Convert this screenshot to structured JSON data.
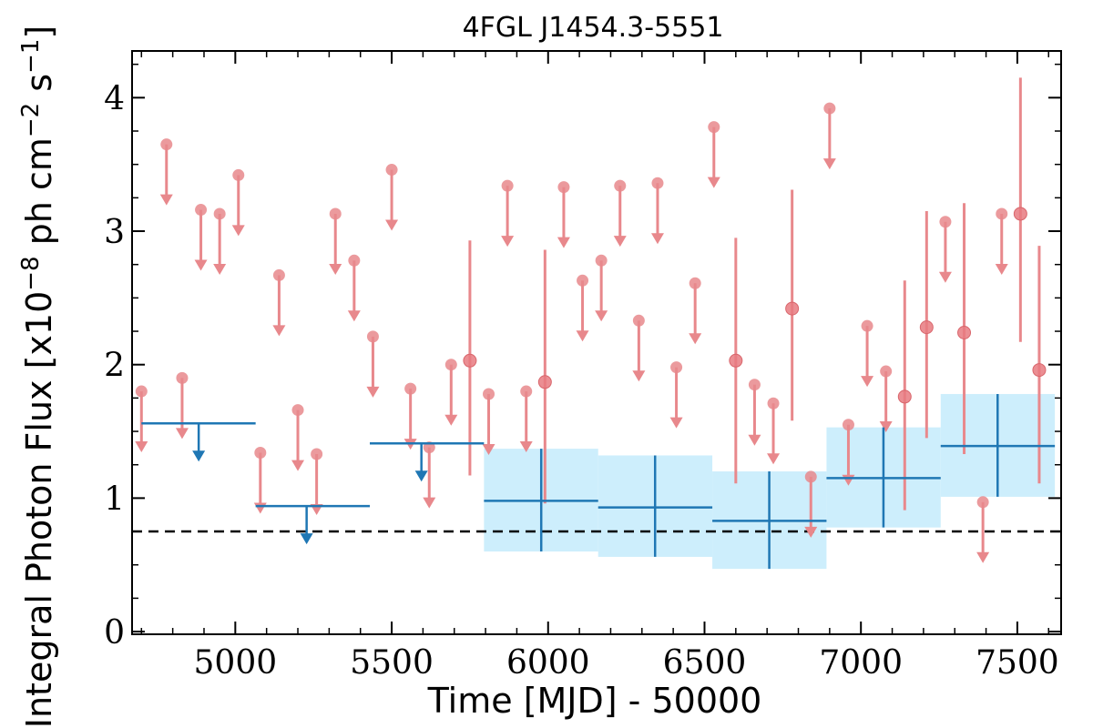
{
  "chart_data": {
    "type": "scatter",
    "title": "4FGL J1454.3-5551",
    "xlabel": "Time [MJD] - 50000",
    "ylabel": "Integral Photon Flux [x10",
    "ylabel_exp1": "−8",
    "ylabel_mid": " ph cm",
    "ylabel_exp2": "−2",
    "ylabel_mid2": " s",
    "ylabel_exp3": "−1",
    "ylabel_end": "]",
    "xlim": [
      4670,
      7640
    ],
    "ylim": [
      -0.02,
      4.35
    ],
    "xticks": [
      5000,
      5500,
      6000,
      6500,
      7000,
      7500
    ],
    "yticks": [
      0,
      1,
      2,
      3,
      4
    ],
    "grid": false,
    "colors": {
      "short_bins": "#e8888c",
      "long_bins": "#1f77b4",
      "band_fill": "#cdeefc",
      "reference_line": "#000000"
    },
    "reference_line_y": 0.75,
    "series": [
      {
        "points": [
          {
            "x": 4700,
            "y": 1.8,
            "ul": true
          },
          {
            "x": 4780,
            "y": 3.65,
            "ul": true
          },
          {
            "x": 4830,
            "y": 1.9,
            "ul": true
          },
          {
            "x": 4890,
            "y": 3.16,
            "ul": true
          },
          {
            "x": 4950,
            "y": 3.13,
            "ul": true
          },
          {
            "x": 5010,
            "y": 3.42,
            "ul": true
          },
          {
            "x": 5080,
            "y": 1.34,
            "ul": true
          },
          {
            "x": 5140,
            "y": 2.67,
            "ul": true
          },
          {
            "x": 5200,
            "y": 1.66,
            "ul": true
          },
          {
            "x": 5260,
            "y": 1.33,
            "ul": true
          },
          {
            "x": 5320,
            "y": 3.13,
            "ul": true
          },
          {
            "x": 5380,
            "y": 2.78,
            "ul": true
          },
          {
            "x": 5440,
            "y": 2.21,
            "ul": true
          },
          {
            "x": 5500,
            "y": 3.46,
            "ul": true
          },
          {
            "x": 5560,
            "y": 1.82,
            "ul": true
          },
          {
            "x": 5620,
            "y": 1.38,
            "ul": true
          },
          {
            "x": 5690,
            "y": 2.0,
            "ul": true
          },
          {
            "x": 5750,
            "y": 2.03,
            "ul": false,
            "yerr_low": 1.17,
            "yerr_high": 2.93
          },
          {
            "x": 5810,
            "y": 1.78,
            "ul": true
          },
          {
            "x": 5870,
            "y": 3.34,
            "ul": true
          },
          {
            "x": 5930,
            "y": 1.8,
            "ul": true
          },
          {
            "x": 5990,
            "y": 1.87,
            "ul": false,
            "yerr_low": 0.96,
            "yerr_high": 2.86
          },
          {
            "x": 6050,
            "y": 3.33,
            "ul": true
          },
          {
            "x": 6110,
            "y": 2.63,
            "ul": true
          },
          {
            "x": 6170,
            "y": 2.78,
            "ul": true
          },
          {
            "x": 6230,
            "y": 3.34,
            "ul": true
          },
          {
            "x": 6290,
            "y": 2.33,
            "ul": true
          },
          {
            "x": 6350,
            "y": 3.36,
            "ul": true
          },
          {
            "x": 6410,
            "y": 1.98,
            "ul": true
          },
          {
            "x": 6470,
            "y": 2.61,
            "ul": true
          },
          {
            "x": 6530,
            "y": 3.78,
            "ul": true
          },
          {
            "x": 6600,
            "y": 2.03,
            "ul": false,
            "yerr_low": 1.11,
            "yerr_high": 2.95
          },
          {
            "x": 6660,
            "y": 1.85,
            "ul": true
          },
          {
            "x": 6720,
            "y": 1.71,
            "ul": true
          },
          {
            "x": 6780,
            "y": 2.42,
            "ul": false,
            "yerr_low": 1.58,
            "yerr_high": 3.31
          },
          {
            "x": 6840,
            "y": 1.16,
            "ul": true
          },
          {
            "x": 6900,
            "y": 3.92,
            "ul": true
          },
          {
            "x": 6960,
            "y": 1.55,
            "ul": true
          },
          {
            "x": 7020,
            "y": 2.29,
            "ul": true
          },
          {
            "x": 7080,
            "y": 1.95,
            "ul": true
          },
          {
            "x": 7140,
            "y": 1.76,
            "ul": false,
            "yerr_low": 0.91,
            "yerr_high": 2.63
          },
          {
            "x": 7210,
            "y": 2.28,
            "ul": false,
            "yerr_low": 1.45,
            "yerr_high": 3.15
          },
          {
            "x": 7270,
            "y": 3.07,
            "ul": true
          },
          {
            "x": 7330,
            "y": 2.24,
            "ul": false,
            "yerr_low": 1.33,
            "yerr_high": 3.21
          },
          {
            "x": 7390,
            "y": 0.97,
            "ul": true
          },
          {
            "x": 7450,
            "y": 3.13,
            "ul": true
          },
          {
            "x": 7510,
            "y": 3.13,
            "ul": false,
            "yerr_low": 2.17,
            "yerr_high": 4.15
          },
          {
            "x": 7570,
            "y": 1.96,
            "ul": false,
            "yerr_low": 1.11,
            "yerr_high": 2.89
          }
        ]
      },
      {
        "bins": [
          {
            "x0": 4700,
            "x1": 5065,
            "y": 1.56,
            "ul": true,
            "arrow_x": 4883
          },
          {
            "x0": 5065,
            "x1": 5430,
            "y": 0.94,
            "ul": true,
            "arrow_x": 5228
          },
          {
            "x0": 5430,
            "x1": 5795,
            "y": 1.41,
            "ul": true,
            "arrow_x": 5595
          },
          {
            "x0": 5795,
            "x1": 6160,
            "y": 0.98,
            "ul": false,
            "x": 5978,
            "ylow": 0.6,
            "yhigh": 1.37
          },
          {
            "x0": 6160,
            "x1": 6525,
            "y": 0.93,
            "ul": false,
            "x": 6342,
            "ylow": 0.56,
            "yhigh": 1.32
          },
          {
            "x0": 6525,
            "x1": 6890,
            "y": 0.83,
            "ul": false,
            "x": 6707,
            "ylow": 0.47,
            "yhigh": 1.2
          },
          {
            "x0": 6890,
            "x1": 7255,
            "y": 1.15,
            "ul": false,
            "x": 7072,
            "ylow": 0.78,
            "yhigh": 1.53
          },
          {
            "x0": 7255,
            "x1": 7620,
            "y": 1.39,
            "ul": false,
            "x": 7437,
            "ylow": 1.01,
            "yhigh": 1.78
          }
        ]
      }
    ]
  }
}
